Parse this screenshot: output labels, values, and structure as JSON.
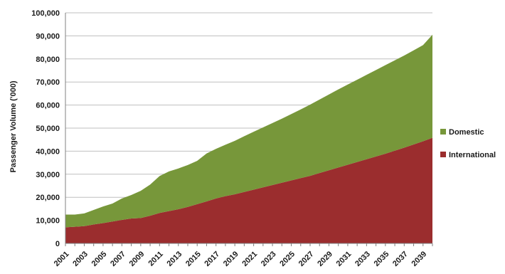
{
  "chart_data": {
    "type": "area",
    "stacked": true,
    "ylabel": "Passenger Volume ('000)",
    "xlabel": "",
    "ylim": [
      0,
      100000
    ],
    "yticks": [
      0,
      10000,
      20000,
      30000,
      40000,
      50000,
      60000,
      70000,
      80000,
      90000,
      100000
    ],
    "ytick_labels": [
      "0",
      "10,000",
      "20,000",
      "30,000",
      "40,000",
      "50,000",
      "60,000",
      "70,000",
      "80,000",
      "90,000",
      "100,000"
    ],
    "x": [
      2001,
      2002,
      2003,
      2004,
      2005,
      2006,
      2007,
      2008,
      2009,
      2010,
      2011,
      2012,
      2013,
      2014,
      2015,
      2016,
      2017,
      2018,
      2019,
      2020,
      2021,
      2022,
      2023,
      2024,
      2025,
      2026,
      2027,
      2028,
      2029,
      2030,
      2031,
      2032,
      2033,
      2034,
      2035,
      2036,
      2037,
      2038,
      2039,
      2040
    ],
    "xtick_labels": [
      "2001",
      "2003",
      "2005",
      "2007",
      "2009",
      "2011",
      "2013",
      "2015",
      "2017",
      "2019",
      "2021",
      "2023",
      "2025",
      "2027",
      "2029",
      "2031",
      "2033",
      "2035",
      "2037",
      "2039"
    ],
    "grid": true,
    "legend_position": "right",
    "series": [
      {
        "name": "International",
        "color": "#9b2d2e",
        "values": [
          7000,
          7200,
          7500,
          8200,
          8800,
          9500,
          10200,
          10800,
          11000,
          12000,
          13200,
          14000,
          14800,
          15800,
          17000,
          18200,
          19500,
          20500,
          21300,
          22300,
          23300,
          24300,
          25300,
          26300,
          27300,
          28300,
          29300,
          30500,
          31700,
          32900,
          34100,
          35300,
          36500,
          37700,
          38900,
          40200,
          41500,
          42900,
          44300,
          45800
        ]
      },
      {
        "name": "Domestic",
        "color": "#77973a",
        "values": [
          5500,
          5300,
          5500,
          6300,
          7200,
          7800,
          9300,
          10200,
          11800,
          13500,
          16000,
          17200,
          17700,
          18200,
          18800,
          20800,
          21500,
          22300,
          23200,
          24200,
          25100,
          26000,
          26900,
          27800,
          28800,
          29800,
          30900,
          31900,
          32900,
          33900,
          34800,
          35700,
          36600,
          37500,
          38400,
          39200,
          40000,
          40800,
          41700,
          44700
        ]
      }
    ]
  }
}
